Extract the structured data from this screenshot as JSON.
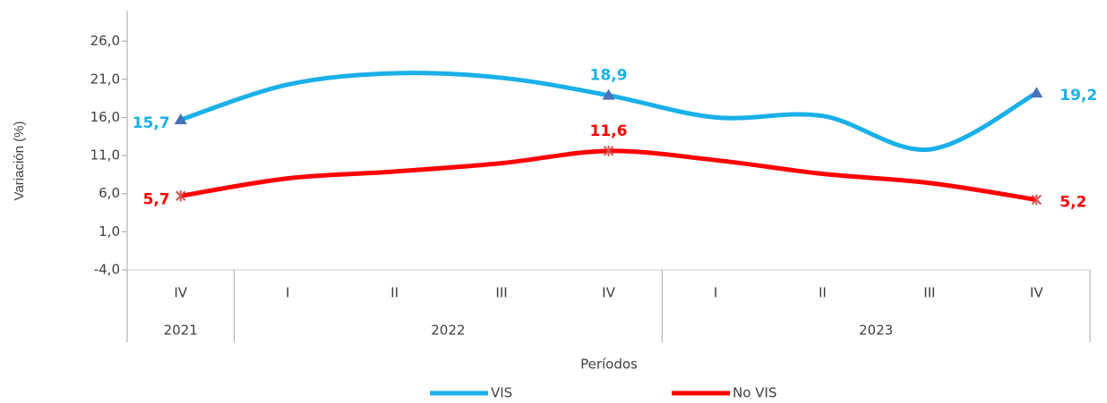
{
  "chart_data": {
    "type": "line",
    "y_title": "Variación (%)",
    "x_title": "Períodos",
    "categories": [
      "IV",
      "I",
      "II",
      "III",
      "IV",
      "I",
      "II",
      "III",
      "IV"
    ],
    "groups": [
      {
        "label": "2021",
        "count": 1
      },
      {
        "label": "2022",
        "count": 4
      },
      {
        "label": "2023",
        "count": 4
      }
    ],
    "series": [
      {
        "name": "VIS",
        "color": "#1ab0e8",
        "marker_color": "#4a72b8",
        "values": [
          15.7,
          20.3,
          21.8,
          21.2,
          18.9,
          16.0,
          16.2,
          11.8,
          19.2
        ],
        "value_labels": [
          "15,7",
          null,
          null,
          null,
          "18,9",
          null,
          null,
          null,
          "19,2"
        ]
      },
      {
        "name": "No VIS",
        "color": "#ff0000",
        "marker_color": "#d9534f",
        "values": [
          5.7,
          8.0,
          8.9,
          10.0,
          11.6,
          10.4,
          8.6,
          7.4,
          5.2
        ],
        "value_labels": [
          "5,7",
          null,
          null,
          null,
          "11,6",
          null,
          null,
          null,
          "5,2"
        ]
      }
    ],
    "ylim": [
      -4,
      30
    ],
    "yticks": [
      {
        "value": -4,
        "label": "-4,0"
      },
      {
        "value": 1,
        "label": "1,0"
      },
      {
        "value": 6,
        "label": "6,0"
      },
      {
        "value": 11,
        "label": "11,0"
      },
      {
        "value": 16,
        "label": "16,0"
      },
      {
        "value": 21,
        "label": "21,0"
      },
      {
        "value": 26,
        "label": "26,0"
      }
    ],
    "legend": "bottom"
  }
}
